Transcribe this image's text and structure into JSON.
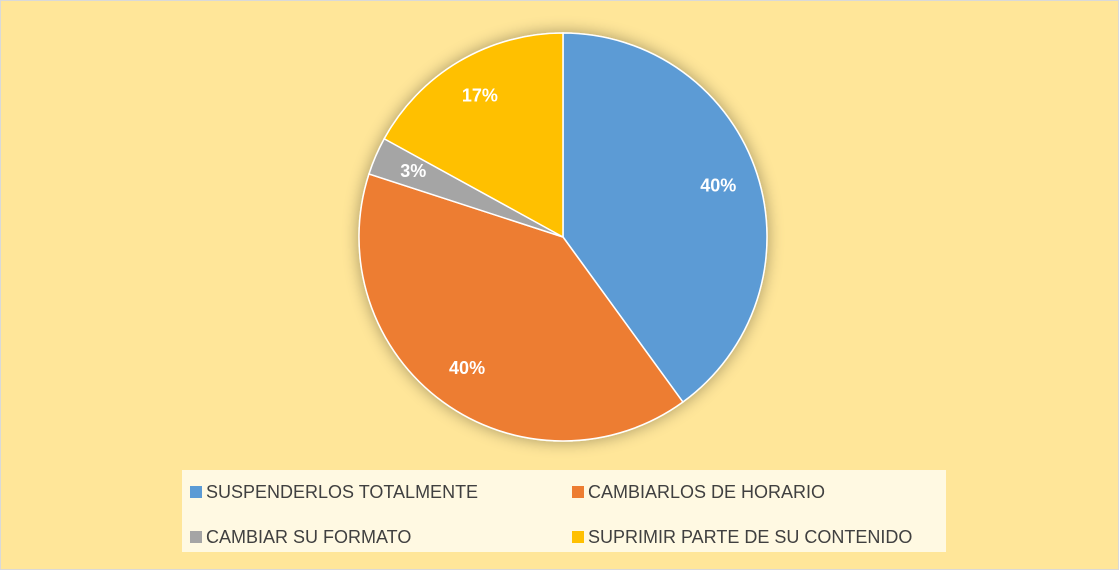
{
  "chart_data": {
    "type": "pie",
    "categories": [
      "SUSPENDERLOS TOTALMENTE",
      "CAMBIARLOS DE HORARIO",
      "CAMBIAR SU FORMATO",
      "SUPRIMIR PARTE DE SU CONTENIDO"
    ],
    "values": [
      40,
      40,
      3,
      17
    ],
    "value_labels": [
      "40%",
      "40%",
      "3%",
      "17%"
    ],
    "colors": [
      "#5b9bd5",
      "#ed7d31",
      "#a5a5a5",
      "#ffc000"
    ],
    "legend": "bottom"
  }
}
